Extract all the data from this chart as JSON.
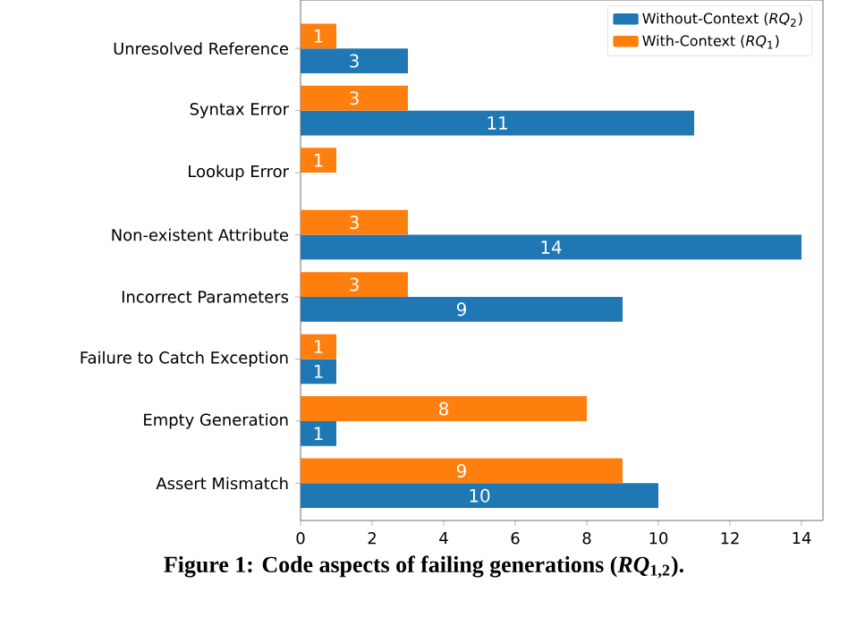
{
  "chart_data": {
    "type": "bar",
    "orientation": "horizontal",
    "categories": [
      "Unresolved Reference",
      "Syntax Error",
      "Lookup Error",
      "Non-existent Attribute",
      "Incorrect Parameters",
      "Failure to Catch Exception",
      "Empty Generation",
      "Assert Mismatch"
    ],
    "series": [
      {
        "name": "Without-Context (*RQ*$_{2}$)",
        "color": "#1f77b4",
        "values": [
          3,
          11,
          null,
          14,
          9,
          1,
          1,
          10
        ]
      },
      {
        "name": "With-Context (*RQ*$_{1}$)",
        "color": "#ff7f0e",
        "values": [
          1,
          3,
          1,
          3,
          3,
          1,
          8,
          9
        ]
      }
    ],
    "xlim": [
      0,
      14.6
    ],
    "xticks": [
      0,
      2,
      4,
      6,
      8,
      10,
      12,
      14
    ],
    "data_labels": true,
    "legend": "top right",
    "grid": false,
    "annotations": [
      "Figure 1: Code aspects of failing generations (*RQ*$_{1,2}$)."
    ]
  }
}
